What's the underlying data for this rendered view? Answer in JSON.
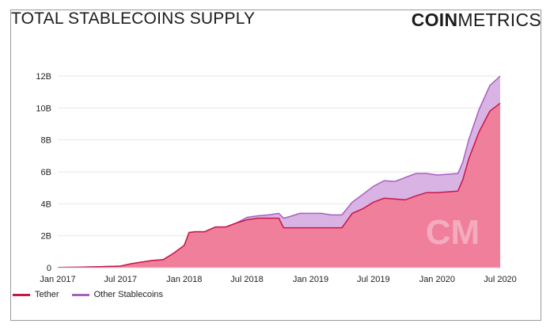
{
  "header": {
    "title": "TOTAL STABLECOINS SUPPLY",
    "brand_bold": "COIN",
    "brand_light": "METRICS"
  },
  "watermark": "CM",
  "colors": {
    "tether_line": "#c8174a",
    "tether_fill": "#ef7f9a",
    "other_line": "#a85fbf",
    "other_fill": "#d9b3e3",
    "grid": "#e6e6e6"
  },
  "chart_data": {
    "type": "area",
    "title": "TOTAL STABLECOINS SUPPLY",
    "stacked": true,
    "xlabel": "",
    "ylabel": "",
    "ylim": [
      0,
      12
    ],
    "y_ticks": [
      0,
      2,
      4,
      6,
      8,
      10,
      12
    ],
    "y_tick_labels": [
      "0",
      "2B",
      "4B",
      "6B",
      "8B",
      "10B",
      "12B"
    ],
    "x_ticks": [
      "2017-01",
      "2017-07",
      "2018-01",
      "2018-07",
      "2019-01",
      "2019-07",
      "2020-01",
      "2020-07"
    ],
    "x_tick_labels": [
      "Jan 2017",
      "Jul 2017",
      "Jan 2018",
      "Jul 2018",
      "Jan 2019",
      "Jul 2019",
      "Jan 2020",
      "Jul 2020"
    ],
    "legend_position": "bottom-left",
    "grid": true,
    "x": [
      "2017-01-01",
      "2017-03-01",
      "2017-05-01",
      "2017-07-01",
      "2017-08-01",
      "2017-09-01",
      "2017-10-01",
      "2017-11-01",
      "2017-12-01",
      "2018-01-01",
      "2018-01-15",
      "2018-02-01",
      "2018-03-01",
      "2018-04-01",
      "2018-05-01",
      "2018-06-01",
      "2018-07-01",
      "2018-08-01",
      "2018-09-01",
      "2018-10-01",
      "2018-10-15",
      "2018-11-01",
      "2018-12-01",
      "2019-01-01",
      "2019-02-01",
      "2019-03-01",
      "2019-04-01",
      "2019-05-01",
      "2019-06-01",
      "2019-07-01",
      "2019-08-01",
      "2019-09-01",
      "2019-10-01",
      "2019-11-01",
      "2019-12-01",
      "2020-01-01",
      "2020-02-01",
      "2020-03-01",
      "2020-03-15",
      "2020-04-01",
      "2020-05-01",
      "2020-06-01",
      "2020-07-01"
    ],
    "series": [
      {
        "name": "Tether",
        "values": [
          0.01,
          0.03,
          0.06,
          0.1,
          0.25,
          0.35,
          0.45,
          0.5,
          0.9,
          1.4,
          2.2,
          2.25,
          2.25,
          2.55,
          2.55,
          2.8,
          3.0,
          3.1,
          3.1,
          3.1,
          2.5,
          2.5,
          2.5,
          2.5,
          2.5,
          2.5,
          2.5,
          3.4,
          3.7,
          4.1,
          4.35,
          4.3,
          4.25,
          4.5,
          4.7,
          4.7,
          4.75,
          4.8,
          5.5,
          6.8,
          8.5,
          9.8,
          10.3
        ]
      },
      {
        "name": "Other Stablecoins",
        "values": [
          0.0,
          0.0,
          0.0,
          0.0,
          0.0,
          0.0,
          0.0,
          0.0,
          0.0,
          0.0,
          0.0,
          0.0,
          0.0,
          0.0,
          0.0,
          0.0,
          0.15,
          0.15,
          0.2,
          0.3,
          0.6,
          0.7,
          0.9,
          0.9,
          0.9,
          0.8,
          0.8,
          0.7,
          0.9,
          1.0,
          1.1,
          1.1,
          1.4,
          1.4,
          1.2,
          1.1,
          1.1,
          1.1,
          1.1,
          1.2,
          1.4,
          1.6,
          1.7
        ]
      }
    ]
  },
  "legend": {
    "items": [
      {
        "label": "Tether",
        "color": "#c8174a"
      },
      {
        "label": "Other Stablecoins",
        "color": "#a85fbf"
      }
    ]
  }
}
